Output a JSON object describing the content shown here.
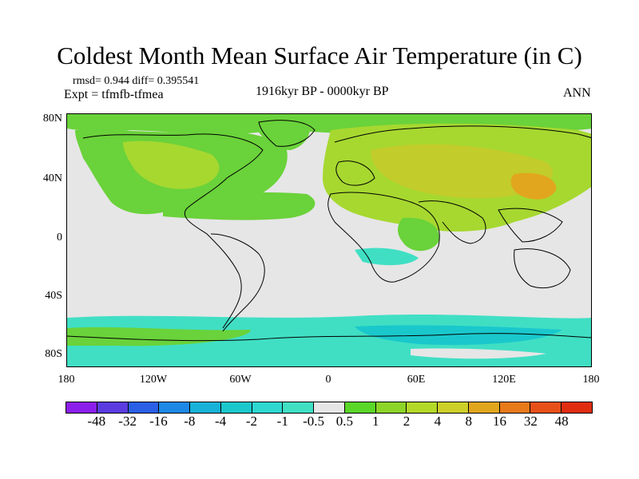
{
  "title": "Coldest Month Mean Surface Air Temperature (in C)",
  "stats": "rmsd= 0.944 diff= 0.395541",
  "expt": "Expt = tfmfb-tfmea",
  "period": "1916kyr BP - 0000kyr BP",
  "season": "ANN",
  "lat_labels": [
    "80N",
    "40N",
    "0",
    "40S",
    "80S"
  ],
  "lon_labels": [
    "180",
    "120W",
    "60W",
    "0",
    "60E",
    "120E",
    "180"
  ],
  "colorbar": {
    "labels": [
      "-48",
      "-32",
      "-16",
      "-8",
      "-4",
      "-2",
      "-1",
      "-0.5",
      "0.5",
      "1",
      "2",
      "4",
      "8",
      "16",
      "32",
      "48"
    ],
    "colors": [
      "#8c1eeb",
      "#5a3ce0",
      "#2a5fe6",
      "#1e88e6",
      "#17b2d8",
      "#1ac8cc",
      "#2ed8d0",
      "#40dfc4",
      "#e6e6e6",
      "#5ad628",
      "#8cd428",
      "#b4d828",
      "#cdd028",
      "#e2a61e",
      "#e87a19",
      "#e8501a",
      "#e02d0f"
    ]
  },
  "map_colors": {
    "background": "#e6e6e6",
    "green": "#6ad23a",
    "yellowgreen": "#a6d830",
    "olive": "#c2cc2a",
    "cyan": "#1ac8cc",
    "lightblue": "#40dfc4"
  }
}
